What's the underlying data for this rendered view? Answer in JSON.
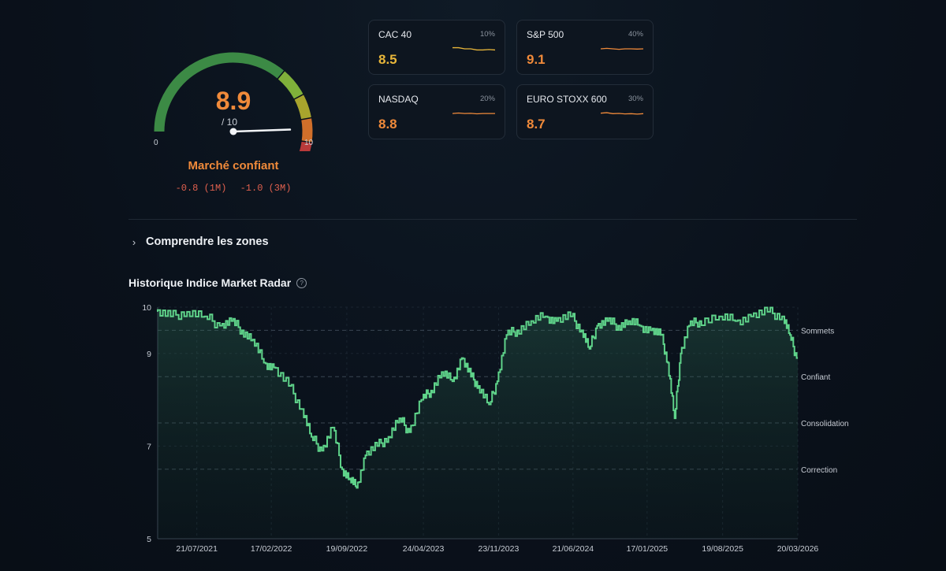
{
  "gauge": {
    "score": "8.9",
    "max_label": "/ 10",
    "min_tick": "0",
    "max_tick": "10",
    "score_value": 8.9,
    "segments": [
      {
        "from": 0,
        "to": 6.5,
        "color": "#3c8a45"
      },
      {
        "from": 6.5,
        "to": 7.6,
        "color": "#7fb03a"
      },
      {
        "from": 7.6,
        "to": 8.5,
        "color": "#a8a42d"
      },
      {
        "from": 8.5,
        "to": 9.4,
        "color": "#d06f2a"
      },
      {
        "from": 9.4,
        "to": 10,
        "color": "#b93a3a"
      }
    ]
  },
  "status": {
    "label": "Marché confiant",
    "change_1m": "-0.8 (1M)",
    "change_3m": "-1.0 (3M)"
  },
  "indices": [
    {
      "name": "CAC 40",
      "weight": "10%",
      "value": "8.5",
      "color": "#e8b63a",
      "spark": [
        8.6,
        8.6,
        8.55,
        8.55,
        8.5,
        8.5,
        8.52,
        8.5
      ]
    },
    {
      "name": "S&P 500",
      "weight": "40%",
      "value": "9.1",
      "color": "#f08a3a",
      "spark": [
        9.1,
        9.12,
        9.1,
        9.08,
        9.1,
        9.1,
        9.09,
        9.1
      ]
    },
    {
      "name": "NASDAQ",
      "weight": "20%",
      "value": "8.8",
      "color": "#f08a3a",
      "spark": [
        8.8,
        8.82,
        8.8,
        8.81,
        8.79,
        8.8,
        8.8,
        8.8
      ]
    },
    {
      "name": "EURO STOXX 600",
      "weight": "30%",
      "value": "8.7",
      "color": "#f08a3a",
      "spark": [
        8.72,
        8.74,
        8.7,
        8.71,
        8.69,
        8.7,
        8.68,
        8.7
      ]
    }
  ],
  "zones_toggle": {
    "label": "Comprendre les zones"
  },
  "history": {
    "title": "Historique Indice Market Radar"
  },
  "chart_data": {
    "type": "area",
    "title": "Historique Indice Market Radar",
    "ylim": [
      5,
      10
    ],
    "y_ticks": [
      "5",
      "7",
      "9",
      "10"
    ],
    "y_tick_values": [
      5,
      7,
      9,
      10
    ],
    "x_ticks": [
      "21/07/2021",
      "17/02/2022",
      "19/09/2022",
      "24/04/2023",
      "23/11/2023",
      "21/06/2024",
      "17/01/2025",
      "19/08/2025",
      "20/03/2026"
    ],
    "x_range": [
      "2021-04-01",
      "2026-03-20"
    ],
    "zones": [
      {
        "label": "Sommets",
        "value": 9.5
      },
      {
        "label": "Confiant",
        "value": 8.5
      },
      {
        "label": "Consolidation",
        "value": 7.5
      },
      {
        "label": "Correction",
        "value": 6.5
      }
    ],
    "line_color": "#5fd38a",
    "series": [
      {
        "x": [
          "2021-04-01",
          "2021-05-15",
          "2021-07-01",
          "2021-08-20",
          "2021-10-01",
          "2021-11-01",
          "2021-12-01",
          "2022-01-01",
          "2022-02-01",
          "2022-03-01",
          "2022-04-15",
          "2022-05-20",
          "2022-06-15",
          "2022-07-15",
          "2022-08-15",
          "2022-09-10",
          "2022-10-01",
          "2022-10-20",
          "2022-11-15",
          "2022-12-20",
          "2023-01-20",
          "2023-02-20",
          "2023-03-20",
          "2023-04-24",
          "2023-05-20",
          "2023-06-20",
          "2023-07-20",
          "2023-08-15",
          "2023-09-10",
          "2023-10-01",
          "2023-11-01",
          "2023-11-23",
          "2023-12-20",
          "2024-01-20",
          "2024-03-01",
          "2024-04-10",
          "2024-05-10",
          "2024-06-21",
          "2024-07-20",
          "2024-08-10",
          "2024-09-01",
          "2024-10-01",
          "2024-11-01",
          "2024-12-01",
          "2025-01-01",
          "2025-02-01",
          "2025-03-01",
          "2025-03-20",
          "2025-04-08",
          "2025-04-25",
          "2025-05-20",
          "2025-06-20",
          "2025-08-19",
          "2025-10-01",
          "2025-11-15",
          "2026-01-01",
          "2026-02-10",
          "2026-03-01",
          "2026-03-20"
        ],
        "y": [
          9.9,
          9.8,
          9.9,
          9.8,
          9.6,
          9.7,
          9.5,
          9.3,
          8.8,
          8.7,
          8.3,
          7.8,
          7.2,
          6.9,
          7.4,
          6.5,
          6.3,
          6.1,
          6.8,
          7.0,
          7.2,
          7.6,
          7.3,
          8.0,
          8.2,
          8.6,
          8.4,
          8.9,
          8.5,
          8.3,
          7.9,
          8.4,
          9.4,
          9.5,
          9.7,
          9.8,
          9.7,
          9.8,
          9.5,
          9.1,
          9.6,
          9.7,
          9.6,
          9.7,
          9.6,
          9.5,
          9.4,
          8.8,
          7.6,
          9.0,
          9.6,
          9.7,
          9.8,
          9.7,
          9.8,
          9.9,
          9.8,
          9.4,
          8.9
        ]
      }
    ]
  }
}
